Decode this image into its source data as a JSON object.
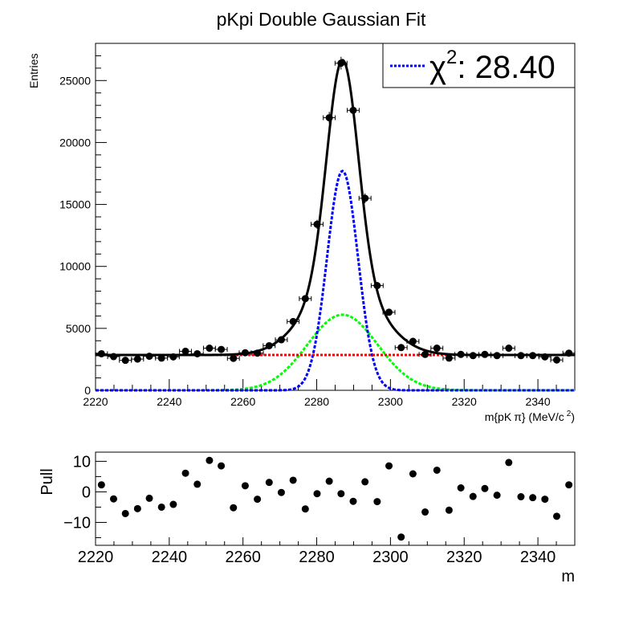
{
  "chart_data": [
    {
      "type": "scatter",
      "title": "pKpi Double Gaussian Fit",
      "xlabel": "m{pK π} (MeV/c²)",
      "xlabel_parts": {
        "pre": "m{pK",
        "pi": "π",
        "mid": "} (MeV/c",
        "sup": "2",
        "post": ")"
      },
      "ylabel": "Entries",
      "xlim": [
        2220,
        2350
      ],
      "ylim": [
        0,
        28000
      ],
      "xticks": [
        2220,
        2240,
        2260,
        2280,
        2300,
        2320,
        2340
      ],
      "yticks": [
        0,
        5000,
        10000,
        15000,
        20000,
        25000
      ],
      "legend": {
        "label_chi": "χ",
        "label_sup": "2",
        "label_rest": ": 28.40",
        "color": "#0000ff",
        "position": "top-right"
      },
      "series": [
        {
          "role": "data points with error bars",
          "color": "#000000",
          "bin_width": 3.25,
          "x": [
            2221.6,
            2224.9,
            2228.1,
            2231.4,
            2234.6,
            2237.9,
            2241.1,
            2244.4,
            2247.6,
            2250.9,
            2254.1,
            2257.4,
            2260.6,
            2263.9,
            2267.1,
            2270.4,
            2273.6,
            2276.9,
            2280.1,
            2283.4,
            2286.6,
            2289.9,
            2293.1,
            2296.4,
            2299.6,
            2302.9,
            2306.1,
            2309.4,
            2312.6,
            2315.9,
            2319.1,
            2322.4,
            2325.6,
            2328.9,
            2332.1,
            2335.4,
            2338.6,
            2341.9,
            2345.1,
            2348.4
          ],
          "y": [
            2950,
            2720,
            2420,
            2520,
            2750,
            2600,
            2700,
            3150,
            2950,
            3400,
            3300,
            2580,
            3030,
            3000,
            3600,
            4080,
            5550,
            7400,
            13400,
            22000,
            26400,
            22600,
            15500,
            8450,
            6300,
            3450,
            3950,
            2900,
            3400,
            2600,
            2900,
            2800,
            2900,
            2800,
            3400,
            2800,
            2800,
            2700,
            2450,
            3000
          ],
          "yerr": [
            170,
            165,
            155,
            160,
            165,
            160,
            165,
            180,
            170,
            185,
            180,
            160,
            175,
            175,
            190,
            200,
            235,
            270,
            365,
            470,
            515,
            475,
            395,
            290,
            250,
            185,
            200,
            170,
            185,
            160,
            170,
            165,
            170,
            165,
            185,
            165,
            165,
            165,
            155,
            175
          ]
        },
        {
          "role": "total fit",
          "color": "#000000",
          "style": "solid"
        },
        {
          "role": "narrow gaussian",
          "color": "#0000ff",
          "style": "dashed",
          "mean": 2287,
          "sigma": 4.2,
          "amplitude": 17700
        },
        {
          "role": "wide gaussian",
          "color": "#00ff00",
          "style": "dashed",
          "mean": 2287,
          "sigma": 9.5,
          "amplitude": 6100
        },
        {
          "role": "flat background",
          "color": "#ff0000",
          "style": "dotted",
          "level": 2850
        }
      ]
    },
    {
      "type": "scatter",
      "title": "",
      "xlabel": "m",
      "ylabel": "Pull",
      "xlim": [
        2220,
        2350
      ],
      "ylim": [
        -17.5,
        13
      ],
      "xticks": [
        2220,
        2240,
        2260,
        2280,
        2300,
        2320,
        2340
      ],
      "yticks": [
        -10,
        0,
        10
      ],
      "series": [
        {
          "role": "pull points",
          "color": "#000000",
          "x": [
            2221.6,
            2224.9,
            2228.1,
            2231.4,
            2234.6,
            2237.9,
            2241.1,
            2244.4,
            2247.6,
            2250.9,
            2254.1,
            2257.4,
            2260.6,
            2263.9,
            2267.1,
            2270.4,
            2273.6,
            2276.9,
            2280.1,
            2283.4,
            2286.6,
            2289.9,
            2293.1,
            2296.4,
            2299.6,
            2302.9,
            2306.1,
            2309.4,
            2312.6,
            2315.9,
            2319.1,
            2322.4,
            2325.6,
            2328.9,
            2332.1,
            2335.4,
            2338.6,
            2341.9,
            2345.1,
            2348.4
          ],
          "y": [
            2.3,
            -2.3,
            -7.1,
            -5.5,
            -2.1,
            -5.0,
            -4.1,
            6.1,
            2.5,
            10.3,
            8.5,
            -5.2,
            2.0,
            -2.4,
            3.1,
            -0.2,
            3.8,
            -5.6,
            -0.6,
            3.5,
            -0.6,
            -3.1,
            3.3,
            -3.2,
            8.5,
            -14.8,
            5.9,
            -6.6,
            7.1,
            -6.0,
            1.3,
            -1.5,
            1.1,
            -1.1,
            9.6,
            -1.6,
            -1.9,
            -2.4,
            -8.0,
            2.3
          ]
        }
      ]
    }
  ]
}
